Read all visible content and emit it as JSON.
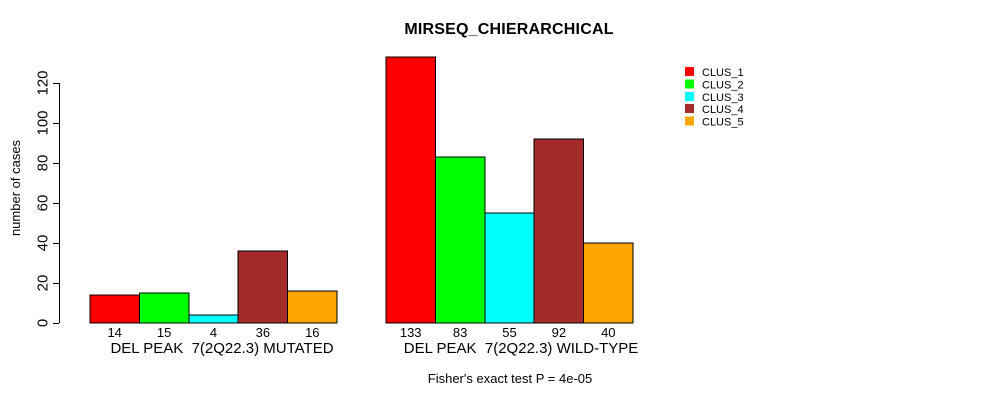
{
  "title": "MIRSEQ_CHIERARCHICAL",
  "footer": "Fisher's exact test P = 4e-05",
  "colors": {
    "background": "#FFFFFF",
    "text": "#000000",
    "bar_border": "#000000",
    "axis": "#000000"
  },
  "chart_data": {
    "type": "bar",
    "title": "MIRSEQ_CHIERARCHICAL",
    "ylabel": "number of cases",
    "xlabel": "",
    "ylim": [
      0,
      133
    ],
    "yticks": [
      0,
      20,
      40,
      60,
      80,
      100,
      120
    ],
    "grid": false,
    "legend_position": "top-right",
    "series": [
      {
        "name": "CLUS_1",
        "color": "#FF0000"
      },
      {
        "name": "CLUS_2",
        "color": "#00FF00"
      },
      {
        "name": "CLUS_3",
        "color": "#00FFFF"
      },
      {
        "name": "CLUS_4",
        "color": "#A52A2A"
      },
      {
        "name": "CLUS_5",
        "color": "#FFA500"
      }
    ],
    "groups": [
      {
        "label": "DEL PEAK  7(2Q22.3) MUTATED",
        "values": [
          14,
          15,
          4,
          36,
          16
        ],
        "bar_labels": [
          "14",
          "15",
          "4",
          "36",
          "16"
        ]
      },
      {
        "label": "DEL PEAK  7(2Q22.3) WILD-TYPE",
        "values": [
          133,
          83,
          55,
          92,
          40
        ],
        "bar_labels": [
          "133",
          "83",
          "55",
          "92",
          "40"
        ]
      }
    ],
    "annotation": "Fisher's exact test P = 4e-05"
  }
}
